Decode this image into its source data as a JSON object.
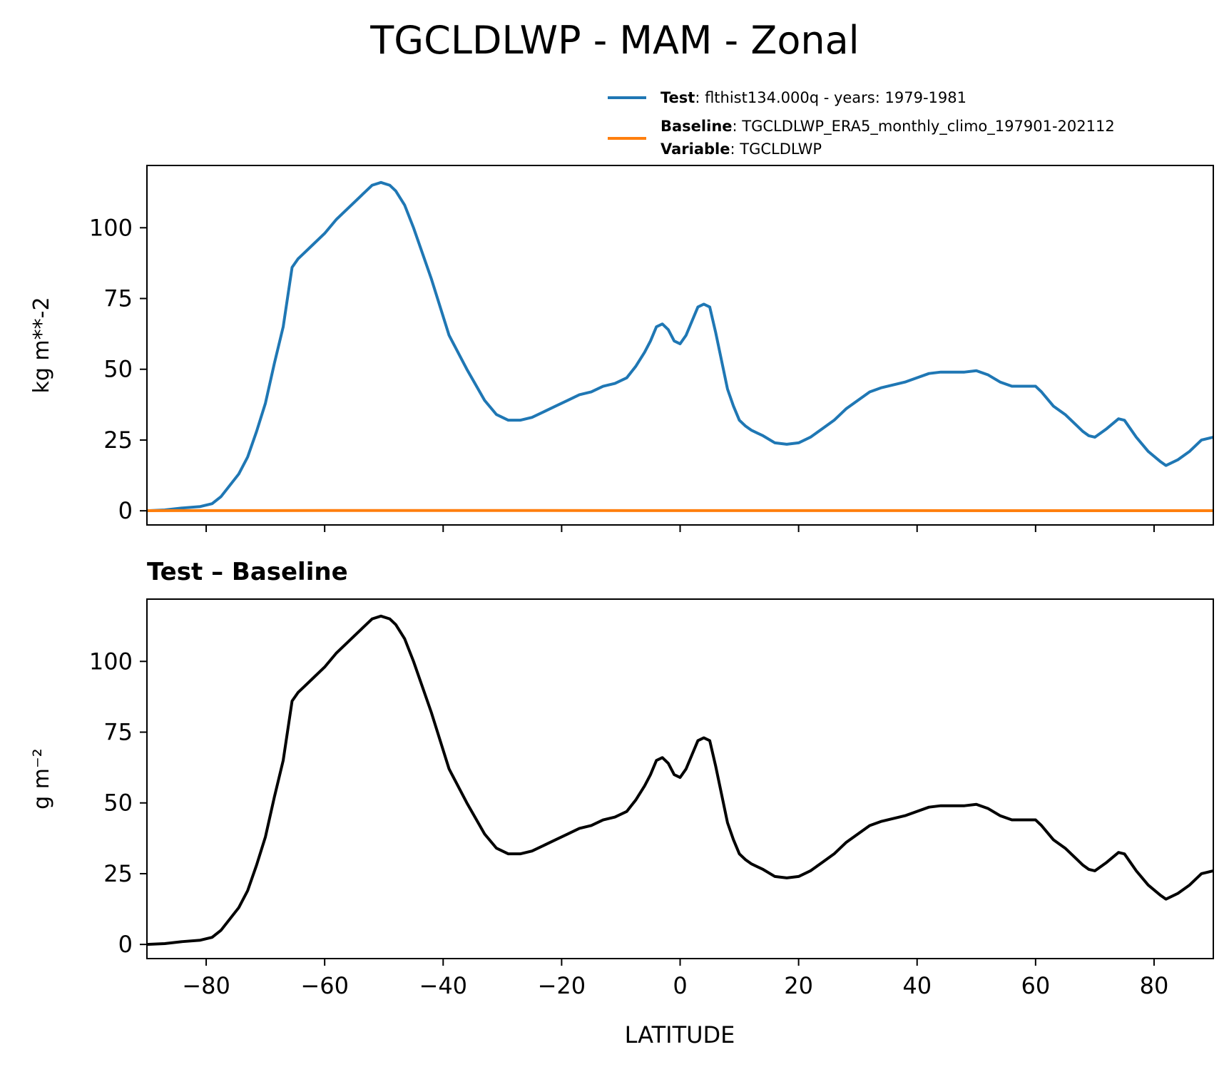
{
  "title": "TGCLDLWP - MAM - Zonal",
  "legend": {
    "test": {
      "label_bold": "Test",
      "label_rest": ": flthist134.000q - years: 1979-1981"
    },
    "baseline": {
      "label_bold": "Baseline",
      "label_rest": ": TGCLDLWP_ERA5_monthly_climo_197901-202112"
    },
    "variable": {
      "label_bold": "Variable",
      "label_rest": ": TGCLDLWP"
    }
  },
  "colors": {
    "test": "#1f77b4",
    "baseline": "#ff7f0e",
    "diff": "#000000"
  },
  "chart_data": [
    {
      "type": "line",
      "ylabel": "kg m**-2",
      "xlim": [
        -90,
        90
      ],
      "ylim": [
        -5,
        122
      ],
      "yticks": [
        0,
        25,
        50,
        75,
        100
      ],
      "xticks": [
        -80,
        -60,
        -40,
        -20,
        0,
        20,
        40,
        60,
        80
      ],
      "grid": false,
      "legend_position": "above",
      "series": [
        {
          "name": "Test",
          "x": [
            -90,
            -87,
            -84,
            -81,
            -79,
            -77.5,
            -76,
            -74.5,
            -73,
            -71.5,
            -70,
            -68.5,
            -67,
            -65.5,
            -64.5,
            -63.5,
            -62,
            -60,
            -58,
            -56,
            -54,
            -52,
            -50.5,
            -49,
            -48,
            -46.5,
            -45,
            -42,
            -39,
            -36,
            -33,
            -31,
            -29,
            -27,
            -25,
            -23,
            -21,
            -19,
            -17,
            -15,
            -13,
            -11,
            -9,
            -7.5,
            -6,
            -5,
            -4,
            -3,
            -2,
            -1,
            0,
            1,
            2,
            3,
            4,
            5,
            6,
            7,
            8,
            9,
            10,
            11,
            12,
            13,
            14,
            16,
            18,
            20,
            22,
            24,
            26,
            28,
            30,
            32,
            34,
            36,
            38,
            40,
            42,
            44,
            46,
            48,
            50,
            52,
            54,
            56,
            58,
            60,
            61,
            63,
            65,
            67,
            68,
            69,
            70,
            72,
            74,
            75,
            77,
            79,
            81,
            82,
            84,
            86,
            88,
            90
          ],
          "values": [
            0,
            0.3,
            1,
            1.5,
            2.5,
            5,
            9,
            13,
            19,
            28,
            38,
            52,
            65,
            86,
            89,
            91,
            94,
            98,
            103,
            107,
            111,
            115,
            116,
            115,
            113,
            108,
            100,
            82,
            62,
            50,
            39,
            34,
            32,
            32,
            33,
            35,
            37,
            39,
            41,
            42,
            44,
            45,
            47,
            51,
            56,
            60,
            65,
            66,
            64,
            60,
            59,
            62,
            67,
            72,
            73,
            72,
            63,
            53,
            43,
            37,
            32,
            30,
            28.5,
            27.5,
            26.5,
            24,
            23.5,
            24,
            26,
            29,
            32,
            36,
            39,
            42,
            43.5,
            44.5,
            45.5,
            47,
            48.5,
            49,
            49,
            49,
            49.5,
            48,
            45.5,
            44,
            44,
            44,
            42,
            37,
            34,
            30,
            28,
            26.5,
            26,
            29,
            32.5,
            32,
            26,
            21,
            17.5,
            16,
            18,
            21,
            25,
            26
          ]
        },
        {
          "name": "Baseline",
          "x": [
            -90,
            -60,
            -30,
            0,
            30,
            60,
            90
          ],
          "values": [
            0.05,
            0.1,
            0.1,
            0.08,
            0.06,
            0.05,
            0.04
          ]
        }
      ]
    },
    {
      "type": "line",
      "title": "Test – Baseline",
      "ylabel": "g m⁻²",
      "xlabel": "LATITUDE",
      "xlim": [
        -90,
        90
      ],
      "ylim": [
        -5,
        122
      ],
      "yticks": [
        0,
        25,
        50,
        75,
        100
      ],
      "xticks": [
        -80,
        -60,
        -40,
        -20,
        0,
        20,
        40,
        60,
        80
      ],
      "grid": false,
      "series": [
        {
          "x": [
            -90,
            -87,
            -84,
            -81,
            -79,
            -77.5,
            -76,
            -74.5,
            -73,
            -71.5,
            -70,
            -68.5,
            -67,
            -65.5,
            -64.5,
            -63.5,
            -62,
            -60,
            -58,
            -56,
            -54,
            -52,
            -50.5,
            -49,
            -48,
            -46.5,
            -45,
            -42,
            -39,
            -36,
            -33,
            -31,
            -29,
            -27,
            -25,
            -23,
            -21,
            -19,
            -17,
            -15,
            -13,
            -11,
            -9,
            -7.5,
            -6,
            -5,
            -4,
            -3,
            -2,
            -1,
            0,
            1,
            2,
            3,
            4,
            5,
            6,
            7,
            8,
            9,
            10,
            11,
            12,
            13,
            14,
            16,
            18,
            20,
            22,
            24,
            26,
            28,
            30,
            32,
            34,
            36,
            38,
            40,
            42,
            44,
            46,
            48,
            50,
            52,
            54,
            56,
            58,
            60,
            61,
            63,
            65,
            67,
            68,
            69,
            70,
            72,
            74,
            75,
            77,
            79,
            81,
            82,
            84,
            86,
            88,
            90
          ],
          "values": [
            0,
            0.3,
            1,
            1.5,
            2.5,
            5,
            9,
            13,
            19,
            28,
            38,
            52,
            65,
            86,
            89,
            91,
            94,
            98,
            103,
            107,
            111,
            115,
            116,
            115,
            113,
            108,
            100,
            82,
            62,
            50,
            39,
            34,
            32,
            32,
            33,
            35,
            37,
            39,
            41,
            42,
            44,
            45,
            47,
            51,
            56,
            60,
            65,
            66,
            64,
            60,
            59,
            62,
            67,
            72,
            73,
            72,
            63,
            53,
            43,
            37,
            32,
            30,
            28.5,
            27.5,
            26.5,
            24,
            23.5,
            24,
            26,
            29,
            32,
            36,
            39,
            42,
            43.5,
            44.5,
            45.5,
            47,
            48.5,
            49,
            49,
            49,
            49.5,
            48,
            45.5,
            44,
            44,
            44,
            42,
            37,
            34,
            30,
            28,
            26.5,
            26,
            29,
            32.5,
            32,
            26,
            21,
            17.5,
            16,
            18,
            21,
            25,
            26
          ]
        }
      ]
    }
  ]
}
